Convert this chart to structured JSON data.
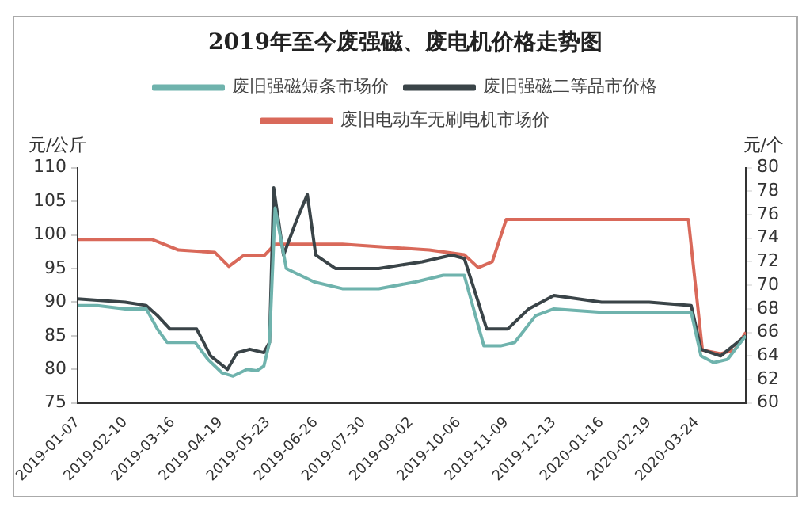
{
  "chart_data": {
    "type": "line",
    "title": "2019年至今废强磁、废电机价格走势图",
    "ylabel": "元/公斤",
    "y2label": "元/个",
    "legend": "top",
    "grid": false,
    "marker": "none",
    "line_style": "solid",
    "xlim": [
      "2019-01-07",
      "2020-04-28"
    ],
    "xticks": [
      "2019-01-07",
      "2019-02-10",
      "2019-03-16",
      "2019-04-19",
      "2019-05-23",
      "2019-06-26",
      "2019-07-30",
      "2019-09-02",
      "2019-10-06",
      "2019-11-09",
      "2019-12-13",
      "2020-01-16",
      "2020-02-19",
      "2020-03-24"
    ],
    "ylim": [
      75,
      110
    ],
    "yticks": [
      75,
      80,
      85,
      90,
      95,
      100,
      105,
      110
    ],
    "y2lim": [
      60,
      80
    ],
    "y2ticks": [
      60,
      62,
      64,
      66,
      68,
      70,
      72,
      74,
      76,
      78,
      80
    ],
    "series": [
      {
        "name": "废旧强磁短条市场价",
        "color": "#6fb3ad",
        "x": [
          "2019-01-07",
          "2019-01-21",
          "2019-02-10",
          "2019-02-25",
          "2019-03-05",
          "2019-03-12",
          "2019-04-01",
          "2019-04-10",
          "2019-04-20",
          "2019-04-28",
          "2019-05-08",
          "2019-05-15",
          "2019-05-20",
          "2019-05-24",
          "2019-05-28",
          "2019-06-05",
          "2019-06-15",
          "2019-06-25",
          "2019-07-15",
          "2019-08-10",
          "2019-09-05",
          "2019-09-25",
          "2019-10-10",
          "2019-10-18",
          "2019-10-24",
          "2019-11-05",
          "2019-11-15",
          "2019-11-30",
          "2019-12-13",
          "2020-01-16",
          "2020-02-19",
          "2020-03-20",
          "2020-03-27",
          "2020-04-05",
          "2020-04-15",
          "2020-04-28"
        ],
        "values": [
          89.5,
          89.5,
          89,
          89,
          86,
          84,
          84,
          81.5,
          79.5,
          79,
          80,
          79.8,
          80.5,
          84,
          104,
          95,
          94,
          93,
          92,
          92,
          93,
          94,
          94,
          88,
          83.5,
          83.5,
          84,
          88,
          89,
          88.5,
          88.5,
          88.5,
          82,
          81,
          81.5,
          85
        ]
      },
      {
        "name": "废旧强磁二等品市价格",
        "color": "#3a4448",
        "x": [
          "2019-01-07",
          "2019-02-10",
          "2019-02-25",
          "2019-03-05",
          "2019-03-14",
          "2019-04-02",
          "2019-04-12",
          "2019-04-24",
          "2019-05-01",
          "2019-05-10",
          "2019-05-20",
          "2019-05-24",
          "2019-05-27",
          "2019-06-03",
          "2019-06-12",
          "2019-06-20",
          "2019-06-26",
          "2019-07-10",
          "2019-08-10",
          "2019-09-10",
          "2019-10-01",
          "2019-10-10",
          "2019-10-20",
          "2019-10-26",
          "2019-11-10",
          "2019-11-25",
          "2019-12-13",
          "2020-01-16",
          "2020-02-19",
          "2020-03-20",
          "2020-03-27",
          "2020-04-10",
          "2020-04-28"
        ],
        "values": [
          90.5,
          90,
          89.5,
          88,
          86,
          86,
          82,
          80,
          82.5,
          83,
          82.5,
          84,
          107,
          97,
          102,
          106,
          97,
          95,
          95,
          96,
          97,
          96.5,
          90,
          86,
          86,
          89,
          91,
          90,
          90,
          89.5,
          83,
          82,
          85
        ]
      },
      {
        "name": "废旧电动车无刷电机市场价",
        "color": "#d9695a",
        "axis": "y2",
        "x": [
          "2019-01-07",
          "2019-03-01",
          "2019-03-20",
          "2019-04-15",
          "2019-04-25",
          "2019-05-05",
          "2019-05-20",
          "2019-05-28",
          "2019-07-15",
          "2019-09-15",
          "2019-10-10",
          "2019-10-20",
          "2019-10-30",
          "2019-11-09",
          "2019-12-13",
          "2020-03-18",
          "2020-03-28",
          "2020-04-10",
          "2020-04-20",
          "2020-04-28"
        ],
        "values": [
          73.9,
          73.9,
          73,
          72.8,
          71.6,
          72.5,
          72.5,
          73.5,
          73.5,
          73,
          72.6,
          71.5,
          72,
          75.6,
          75.6,
          75.6,
          64.5,
          64.2,
          64.5,
          66
        ]
      }
    ]
  }
}
